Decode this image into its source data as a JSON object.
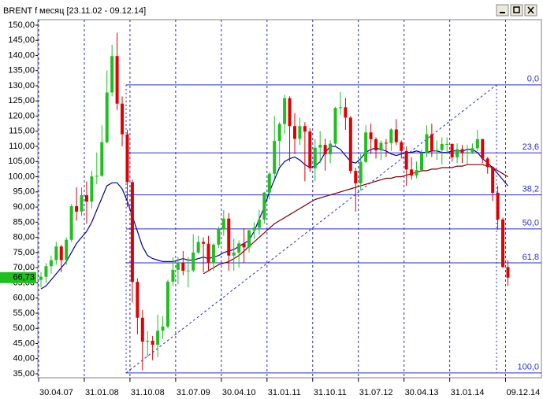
{
  "window": {
    "title": "BRENT f",
    "subtitle": "месяц [23.11.02 - 09.12.14]"
  },
  "chart_data": {
    "type": "candlestick",
    "categories": [
      "30.04.07",
      null,
      null,
      null,
      null,
      null,
      null,
      null,
      null,
      "31.01.08",
      null,
      null,
      null,
      null,
      null,
      null,
      null,
      null,
      "31.10.08",
      null,
      null,
      null,
      null,
      null,
      null,
      null,
      null,
      "31.07.09",
      null,
      null,
      null,
      null,
      null,
      null,
      null,
      null,
      "30.04.10",
      null,
      null,
      null,
      null,
      null,
      null,
      null,
      null,
      "31.01.11",
      null,
      null,
      null,
      null,
      null,
      null,
      null,
      null,
      "31.10.11",
      null,
      null,
      null,
      null,
      null,
      null,
      null,
      null,
      "31.07.12",
      null,
      null,
      null,
      null,
      null,
      null,
      null,
      null,
      "30.04.13",
      null,
      null,
      null,
      null,
      null,
      null,
      null,
      null,
      "31.01.14",
      null,
      null,
      null,
      null,
      null,
      null,
      null,
      null,
      null,
      null,
      "09.12.14"
    ],
    "open": [
      66.0,
      67.0,
      70.5,
      72.5,
      77.0,
      72.5,
      79.2,
      90.3,
      88.5,
      93.9,
      91.8,
      100.1,
      100.3,
      111.4,
      127.8,
      139.8,
      124.1,
      114.0,
      98.2,
      65.3,
      53.5,
      45.6,
      45.9,
      44.6,
      49.2,
      50.6,
      65.4,
      69.3,
      71.7,
      69.0,
      69.1,
      75.0,
      78.5,
      77.9,
      71.5,
      77.6,
      82.7,
      86.2,
      74.0,
      75.0,
      78.0,
      76.7,
      82.3,
      83.2,
      85.9,
      94.8,
      101.0,
      111.8,
      117.4,
      125.9,
      116.7,
      112.5,
      116.7,
      114.9,
      102.8,
      109.6,
      110.5,
      107.4,
      110.9,
      122.7,
      122.9,
      119.5,
      101.9,
      97.8,
      104.9,
      114.6,
      112.4,
      108.7,
      111.2,
      111.1,
      115.6,
      111.4,
      108.5,
      102.4,
      100.4,
      102.2,
      107.7,
      114.0,
      108.4,
      108.8,
      110.8,
      110.8,
      106.4,
      109.1,
      107.8,
      108.1,
      109.4,
      112.4,
      106.0,
      103.2,
      94.7,
      85.9,
      70.2
    ],
    "high": [
      68.5,
      71.5,
      74.0,
      78.5,
      77.5,
      80.0,
      91.0,
      96.5,
      96.5,
      98.5,
      102.0,
      108.0,
      117.0,
      135.0,
      143.5,
      147.5,
      126.5,
      115.5,
      99.0,
      66.5,
      56.0,
      49.0,
      47.5,
      54.5,
      54.0,
      66.0,
      73.5,
      73.5,
      75.5,
      73.5,
      81.0,
      80.5,
      80.0,
      80.5,
      78.0,
      83.5,
      89.0,
      88.0,
      79.5,
      79.0,
      83.0,
      82.5,
      85.0,
      89.0,
      95.0,
      101.5,
      120.0,
      118.0,
      127.0,
      126.5,
      121.0,
      119.5,
      118.0,
      116.0,
      112.5,
      115.0,
      112.5,
      112.0,
      123.0,
      128.0,
      126.0,
      120.0,
      103.0,
      107.5,
      117.0,
      117.5,
      113.0,
      112.0,
      112.5,
      116.0,
      119.0,
      112.0,
      110.0,
      106.5,
      105.0,
      109.0,
      117.0,
      117.5,
      112.0,
      113.0,
      113.0,
      111.0,
      111.0,
      110.5,
      110.5,
      111.0,
      115.5,
      112.5,
      106.5,
      103.5,
      97.0,
      86.5,
      72.5
    ],
    "low": [
      63.5,
      65.0,
      68.0,
      71.0,
      68.5,
      71.0,
      78.5,
      85.5,
      87.0,
      84.5,
      89.5,
      97.5,
      100.0,
      111.0,
      126.5,
      122.0,
      110.0,
      90.0,
      58.5,
      48.0,
      36.2,
      40.5,
      39.5,
      40.5,
      46.5,
      50.0,
      64.0,
      64.5,
      67.5,
      63.5,
      68.5,
      74.5,
      68.5,
      69.0,
      69.0,
      76.5,
      80.5,
      69.0,
      69.0,
      70.0,
      71.5,
      75.0,
      79.5,
      81.0,
      84.5,
      92.5,
      99.5,
      103.5,
      114.0,
      105.0,
      107.5,
      110.5,
      98.5,
      101.5,
      98.5,
      104.5,
      102.0,
      104.5,
      110.0,
      120.5,
      115.5,
      101.0,
      88.5,
      95.5,
      104.5,
      107.5,
      106.0,
      105.5,
      106.5,
      108.5,
      110.5,
      106.0,
      97.0,
      99.0,
      99.5,
      101.5,
      106.5,
      106.5,
      105.5,
      104.0,
      107.5,
      105.0,
      104.5,
      104.5,
      104.0,
      107.5,
      108.5,
      104.5,
      101.0,
      92.0,
      82.5,
      70.0,
      64.0
    ],
    "close": [
      67.0,
      70.5,
      72.5,
      77.0,
      72.5,
      79.2,
      90.3,
      88.5,
      93.9,
      91.8,
      100.1,
      100.3,
      111.4,
      127.8,
      139.8,
      124.1,
      114.0,
      98.2,
      65.3,
      53.5,
      45.6,
      45.9,
      44.6,
      49.2,
      50.6,
      65.4,
      69.3,
      71.7,
      69.0,
      69.1,
      75.0,
      78.5,
      77.9,
      71.5,
      77.6,
      82.7,
      86.2,
      74.0,
      75.0,
      78.0,
      76.7,
      82.3,
      83.2,
      85.9,
      94.8,
      101.0,
      111.8,
      117.4,
      125.9,
      116.7,
      112.5,
      116.7,
      114.9,
      102.8,
      109.6,
      110.5,
      107.4,
      110.9,
      122.7,
      122.9,
      119.5,
      101.9,
      97.8,
      104.9,
      114.6,
      112.4,
      108.7,
      111.2,
      111.1,
      115.6,
      111.4,
      108.5,
      102.4,
      100.4,
      102.2,
      107.7,
      114.0,
      108.4,
      108.8,
      110.8,
      110.8,
      106.4,
      109.1,
      107.8,
      108.1,
      109.4,
      112.4,
      106.0,
      103.2,
      94.7,
      85.9,
      70.2,
      66.73
    ],
    "up_color": "#1fbf1f",
    "down_color": "#e00000",
    "moving_averages": [
      {
        "color": "#0000a8",
        "values": [
          63,
          64,
          66,
          68,
          70,
          72,
          75,
          78,
          80,
          82,
          85,
          89,
          93,
          97,
          98,
          98,
          96,
          92,
          87,
          82,
          77,
          74,
          73,
          72.5,
          72,
          72,
          72,
          72.5,
          73,
          72.5,
          72.5,
          73,
          73.5,
          73,
          73.5,
          74,
          75,
          75.5,
          76,
          77,
          78,
          79,
          82,
          86,
          90,
          95,
          99,
          103,
          105,
          106,
          106.5,
          105.5,
          104,
          103,
          103.5,
          105,
          108,
          110,
          110,
          109,
          107,
          105,
          104.5,
          106,
          108,
          109,
          109.5,
          109,
          108.5,
          107.5,
          107,
          107.5,
          108,
          108,
          108.5,
          108,
          108,
          108.5,
          108.5,
          108,
          108,
          108.5,
          108.5,
          108.5,
          109,
          109,
          108,
          106,
          104.5,
          103,
          101,
          99,
          97
        ]
      },
      {
        "color": "#7a0000",
        "values": [
          null,
          null,
          null,
          null,
          null,
          null,
          null,
          null,
          null,
          null,
          null,
          null,
          null,
          null,
          null,
          null,
          null,
          null,
          null,
          null,
          null,
          null,
          null,
          null,
          null,
          null,
          null,
          null,
          null,
          null,
          null,
          null,
          68,
          69,
          70,
          71,
          71.5,
          72,
          73,
          74,
          75.5,
          77,
          78.5,
          80,
          81.5,
          83,
          84.5,
          85.5,
          86.5,
          87.5,
          88.5,
          89.5,
          90.5,
          91.5,
          92.5,
          93,
          93.5,
          94,
          94.5,
          95,
          95.5,
          96,
          96.5,
          97,
          97.5,
          98,
          98.5,
          99,
          99.5,
          99.5,
          100,
          100,
          100.5,
          101,
          101.5,
          102,
          102,
          102.5,
          102.5,
          103,
          103,
          103,
          103.5,
          103.5,
          104,
          104,
          104,
          104,
          103.5,
          103,
          102,
          101,
          100
        ]
      }
    ],
    "ylim": [
      33.7,
      151.8
    ],
    "yticks": [
      {
        "value": 150,
        "label": "150,00"
      },
      {
        "value": 145,
        "label": "145,00"
      },
      {
        "value": 140,
        "label": "140,00"
      },
      {
        "value": 135,
        "label": "135,00"
      },
      {
        "value": 130,
        "label": "130,00"
      },
      {
        "value": 125,
        "label": "125,00"
      },
      {
        "value": 120,
        "label": "120,00"
      },
      {
        "value": 115,
        "label": "115,00"
      },
      {
        "value": 110,
        "label": "110,00"
      },
      {
        "value": 105,
        "label": "105,00"
      },
      {
        "value": 100,
        "label": "100,00"
      },
      {
        "value": 95,
        "label": "95,00"
      },
      {
        "value": 90,
        "label": "90,00"
      },
      {
        "value": 85,
        "label": "85,00"
      },
      {
        "value": 80,
        "label": "80,00"
      },
      {
        "value": 75,
        "label": "75,00"
      },
      {
        "value": 70,
        "label": "70,00"
      },
      {
        "value": 65,
        "label": "65,00"
      },
      {
        "value": 60,
        "label": "60,00"
      },
      {
        "value": 55,
        "label": "55,00"
      },
      {
        "value": 50,
        "label": "50,00"
      },
      {
        "value": 45,
        "label": "45,00"
      },
      {
        "value": 40,
        "label": "40,00"
      },
      {
        "value": 35,
        "label": "35,00"
      }
    ],
    "last_price": {
      "value": 66.73,
      "label": "66,73"
    },
    "last_price_color": "#1fbf1f",
    "fibonacci": {
      "high": 130.3,
      "low": 35.3,
      "color": "#2a2ad8",
      "levels": [
        {
          "value": 0,
          "label": "0,0"
        },
        {
          "value": 23.6,
          "label": "23,6"
        },
        {
          "value": 38.2,
          "label": "38,2"
        },
        {
          "value": 50,
          "label": "50,0"
        },
        {
          "value": 61.8,
          "label": "61,8"
        },
        {
          "value": 100,
          "label": "100,0"
        }
      ]
    },
    "grid_color": "#2a2ad8"
  }
}
